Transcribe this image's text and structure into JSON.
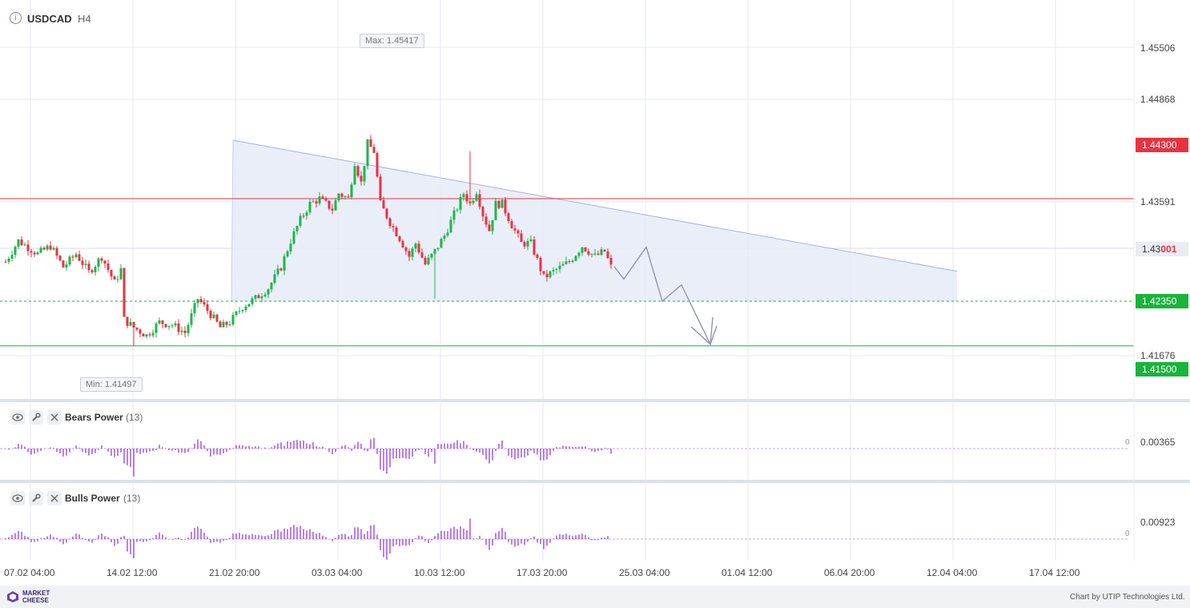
{
  "header": {
    "symbol": "USDCAD",
    "timeframe": "H4",
    "info_icon": "info-circle-icon"
  },
  "chart_data": {
    "type": "candlestick",
    "symbol": "USDCAD",
    "timeframe": "H4",
    "y_axis_ticks": [
      "1.45506",
      "1.44868",
      "1.43591",
      "1.41676"
    ],
    "x_axis_ticks": [
      "07.02 04:00",
      "14.02 12:00",
      "21.02 20:00",
      "03.03 04:00",
      "10.03 12:00",
      "17.03 20:00",
      "25.03 04:00",
      "01.04 12:00",
      "06.04 20:00",
      "12.04 04:00",
      "17.04 12:00"
    ],
    "ylim": [
      1.409,
      1.4575
    ],
    "max_marker": {
      "label": "Max: 1.45417",
      "value": 1.45417
    },
    "min_marker": {
      "label": "Min: 1.41497",
      "value": 1.41497
    },
    "current_price": {
      "prefix": "1.43",
      "suffix": "001",
      "value": 1.43001
    },
    "levels": [
      {
        "label": "1.44300",
        "value": 1.443,
        "color": "#e8333f",
        "style": "solid"
      },
      {
        "label": "1.42350",
        "value": 1.4235,
        "color": "#19b43a",
        "style": "dashed"
      },
      {
        "label": "1.41500",
        "value": 1.415,
        "color": "#19b43a",
        "style": "solid"
      }
    ],
    "pattern": "descending triangle",
    "triangle": {
      "apex_top": {
        "x_bar": 71,
        "value": 1.4541
      },
      "right_top": {
        "x_bar": 297,
        "value": 1.4292
      },
      "base_value": 1.4235
    },
    "forecast_path": [
      {
        "bar": 190,
        "value": 1.4301
      },
      {
        "bar": 193,
        "value": 1.4277
      },
      {
        "bar": 200,
        "value": 1.4338
      },
      {
        "bar": 205,
        "value": 1.4235
      },
      {
        "bar": 211,
        "value": 1.4266
      },
      {
        "bar": 220,
        "value": 1.4153
      },
      {
        "bar": 222,
        "value": 1.4188
      }
    ],
    "candles_count": 190,
    "colors": {
      "up": "#1db54a",
      "down": "#e8333f",
      "triangle_fill": "#e6ebf8",
      "triangle_line": "#a9b4d6",
      "indicator": "#8a2be2"
    }
  },
  "indicators": [
    {
      "name": "Bears Power",
      "period": "(13)",
      "value_label": "0.00365",
      "zero_label": "0"
    },
    {
      "name": "Bulls Power",
      "period": "(13)",
      "value_label": "0.00923",
      "zero_label": "0"
    }
  ],
  "footer": {
    "brand_line1": "MARKET",
    "brand_line2": "CHEESE",
    "credit": "Chart by UTIP Technologies Ltd."
  }
}
